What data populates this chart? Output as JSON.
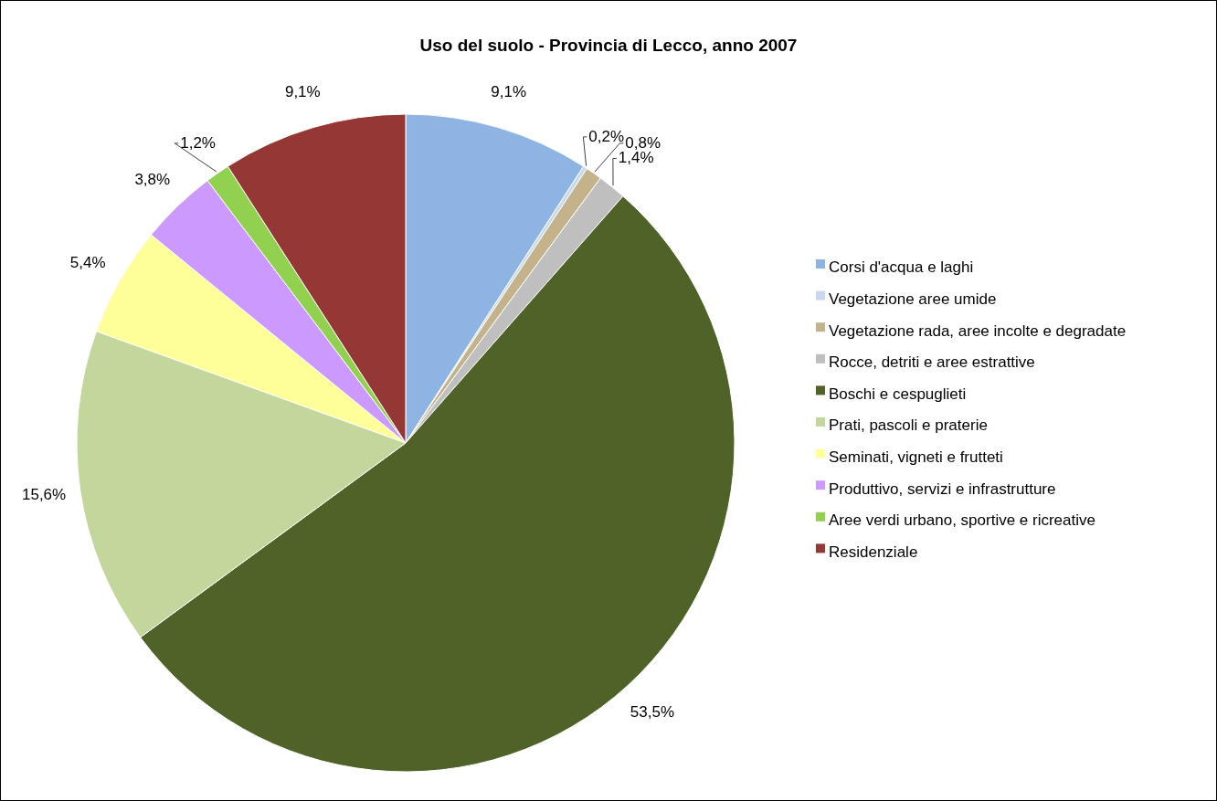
{
  "chart_data": {
    "type": "pie",
    "title": "Uso del suolo - Provincia di Lecco, anno 2007",
    "categories": [
      "Corsi d'acqua e laghi",
      "Vegetazione aree umide",
      "Vegetazione rada, aree incolte e degradate",
      "Rocce, detriti e aree estrattive",
      "Boschi e cespuglieti",
      "Prati, pascoli e praterie",
      "Seminati, vigneti e frutteti",
      "Produttivo, servizi e infrastrutture",
      "Aree verdi urbano, sportive e ricreative",
      "Residenziale"
    ],
    "values": [
      9.1,
      0.2,
      0.8,
      1.4,
      53.5,
      15.6,
      5.4,
      3.8,
      1.2,
      9.1
    ],
    "value_labels": [
      "9,1%",
      "0,2%",
      "0,8%",
      "1,4%",
      "53,5%",
      "15,6%",
      "5,4%",
      "3,8%",
      "1,2%",
      "9,1%"
    ],
    "colors": [
      "#8eb4e3",
      "#c6d9f1",
      "#c4b38a",
      "#bfbfbf",
      "#4f6228",
      "#c3d69b",
      "#ffff99",
      "#cc99ff",
      "#92d050",
      "#953735"
    ],
    "legend": "right"
  }
}
